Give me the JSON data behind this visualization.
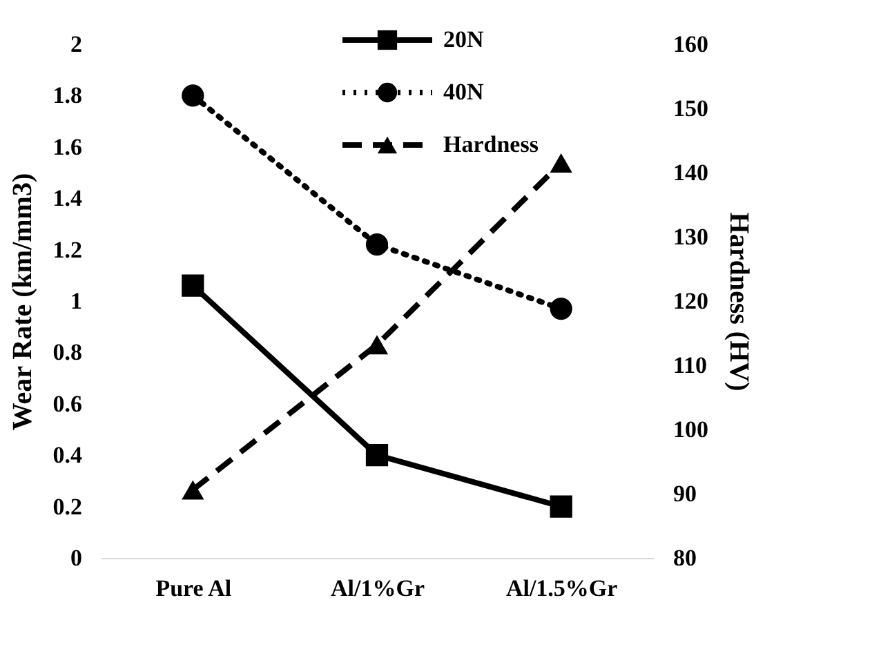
{
  "chart_data": {
    "type": "line",
    "categories": [
      "Pure Al",
      "Al/1%Gr",
      "Al/1.5%Gr"
    ],
    "ylabel": "Wear Rate (km/mm3)",
    "y2label": "Hardness (HV)",
    "ylim": [
      0,
      2
    ],
    "yticks": [
      0,
      0.2,
      0.4,
      0.6,
      0.8,
      1,
      1.2,
      1.4,
      1.6,
      1.8,
      2
    ],
    "y2lim": [
      80,
      160
    ],
    "y2ticks": [
      80,
      90,
      100,
      110,
      120,
      130,
      140,
      150,
      160
    ],
    "grid": false,
    "legend": "top",
    "series": [
      {
        "name": "20N",
        "color": "#000000",
        "values": [
          1.06,
          0.4,
          0.2
        ],
        "marker": "square",
        "line_style": "solid"
      },
      {
        "name": "40N",
        "color": "#000000",
        "values": [
          1.8,
          1.22,
          0.97
        ],
        "marker": "circle",
        "line_style": "dotted"
      },
      {
        "name": "Hardness",
        "color": "#000000",
        "values": [
          90.6,
          113.2,
          141.5
        ],
        "marker": "triangle",
        "line_style": "dashed",
        "axis": "y2"
      }
    ]
  }
}
